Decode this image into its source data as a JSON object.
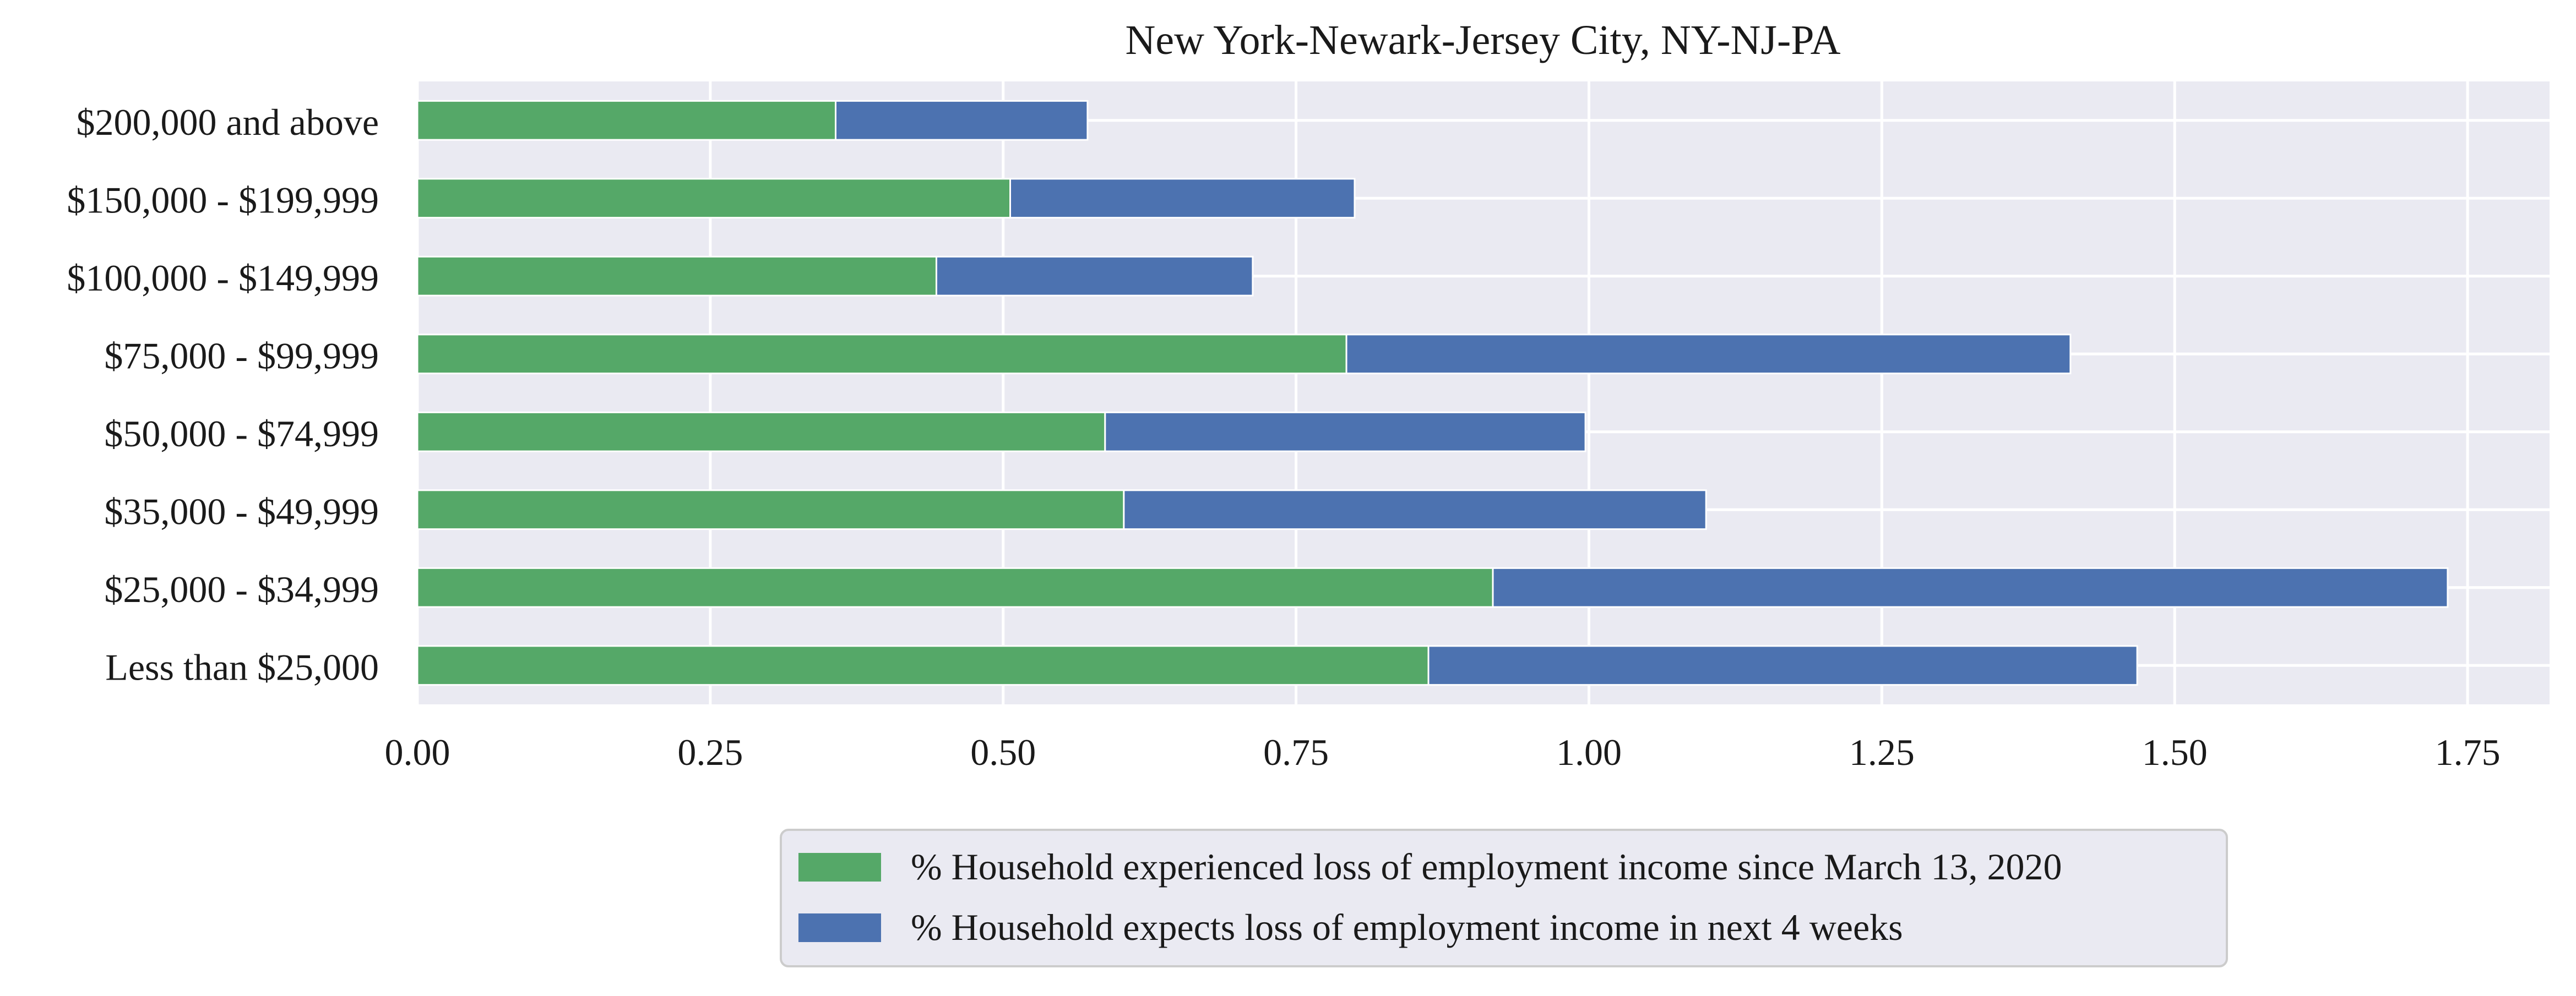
{
  "chart_data": {
    "type": "bar",
    "orientation": "horizontal",
    "stacked": true,
    "title": "New York-Newark-Jersey City, NY-NJ-PA",
    "xlabel": "",
    "ylabel": "",
    "categories": [
      "$200,000 and above",
      "$150,000 - $199,999",
      "$100,000 - $149,999",
      "$75,000 - $99,999",
      "$50,000 - $74,999",
      "$35,000 - $49,999",
      "$25,000 - $34,999",
      "Less than $25,000"
    ],
    "series": [
      {
        "name": "% Household experienced loss of employment income since March 13, 2020",
        "color": "#55a868",
        "values": [
          0.357,
          0.506,
          0.443,
          0.793,
          0.587,
          0.603,
          0.918,
          0.863
        ]
      },
      {
        "name": "% Household expects loss of employment income in next 4 weeks",
        "color": "#4c72b0",
        "values": [
          0.215,
          0.294,
          0.27,
          0.618,
          0.41,
          0.497,
          0.815,
          0.605
        ]
      }
    ],
    "xlim": [
      0,
      1.82
    ],
    "xticks": [
      0,
      0.25,
      0.5,
      0.75,
      1.0,
      1.25,
      1.5,
      1.75
    ],
    "xtick_labels": [
      "0.00",
      "0.25",
      "0.50",
      "0.75",
      "1.00",
      "1.25",
      "1.50",
      "1.75"
    ],
    "grid": true,
    "legend_position": "bottom-center",
    "background": "#eaeaf2"
  }
}
